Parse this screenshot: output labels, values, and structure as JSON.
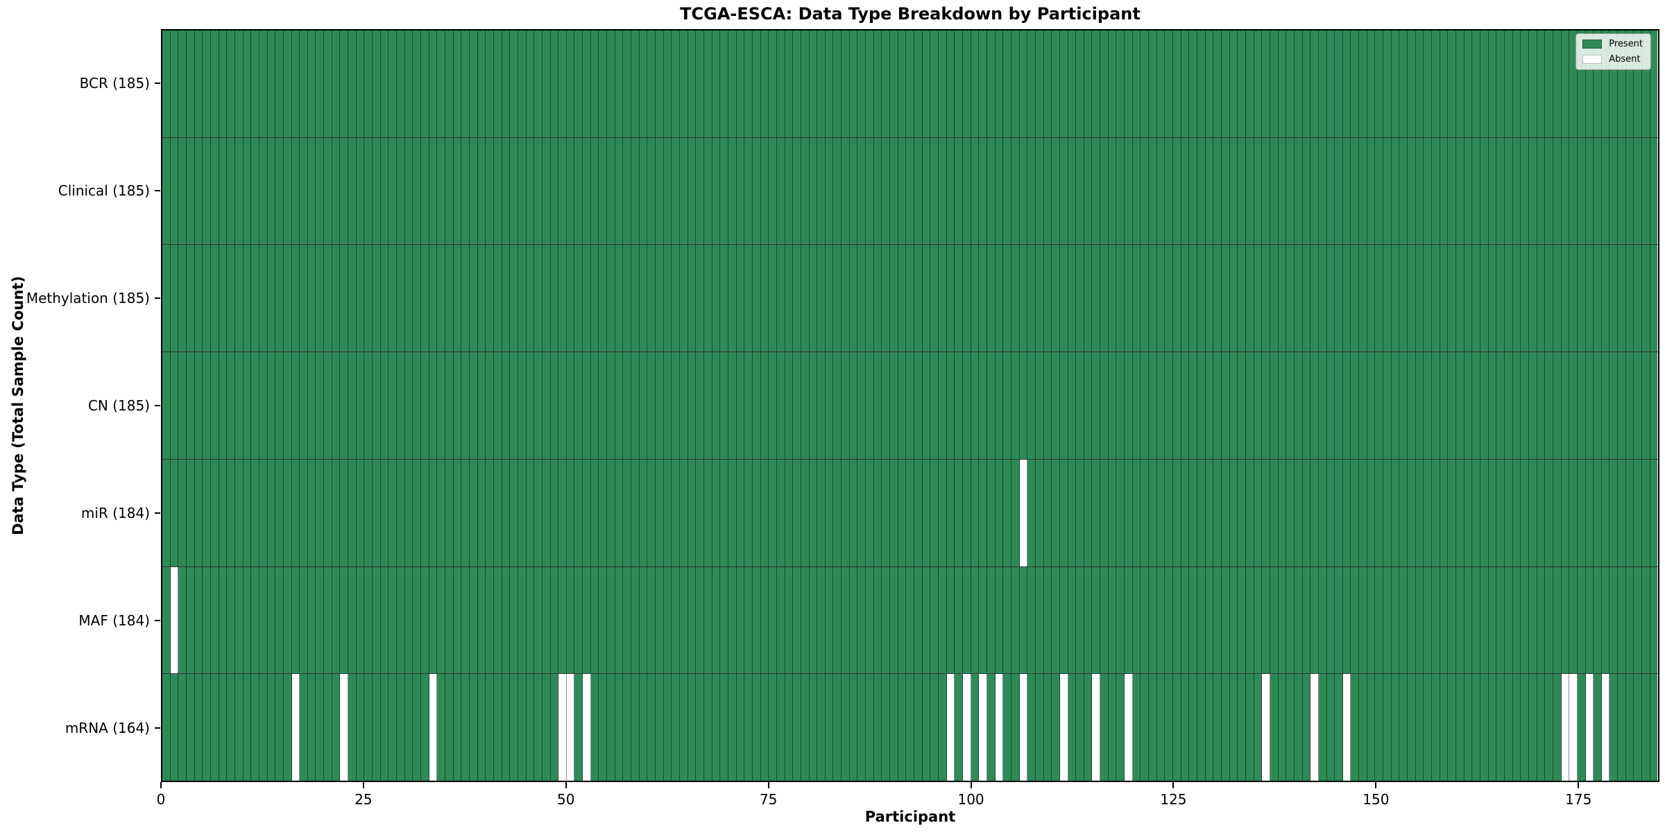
{
  "chart_data": {
    "type": "heatmap",
    "title": "TCGA-ESCA: Data Type Breakdown by Participant",
    "xlabel": "Participant",
    "ylabel": "Data Type (Total Sample Count)",
    "n_participants": 185,
    "x_axis_range": [
      0,
      185
    ],
    "x_ticks": [
      0,
      25,
      50,
      75,
      100,
      125,
      150,
      175
    ],
    "grid": true,
    "colors": {
      "present": "#2e8b57",
      "absent": "#ffffff",
      "cell_edge": "rgba(0,0,0,0.45)",
      "row_divider": "rgba(0,0,0,0.8)"
    },
    "legend": {
      "position": "upper right",
      "entries": [
        {
          "label": "Present",
          "color": "#2e8b57"
        },
        {
          "label": "Absent",
          "color": "#ffffff"
        }
      ]
    },
    "rows": [
      {
        "label": "BCR (185)",
        "data_type": "BCR",
        "present_count": 185,
        "absent_participants": []
      },
      {
        "label": "Clinical (185)",
        "data_type": "Clinical",
        "present_count": 185,
        "absent_participants": []
      },
      {
        "label": "Methylation (185)",
        "data_type": "Methylation",
        "present_count": 185,
        "absent_participants": []
      },
      {
        "label": "CN (185)",
        "data_type": "CN",
        "present_count": 185,
        "absent_participants": []
      },
      {
        "label": "miR (184)",
        "data_type": "miR",
        "present_count": 184,
        "absent_participants": [
          106
        ]
      },
      {
        "label": "MAF (184)",
        "data_type": "MAF",
        "present_count": 184,
        "absent_participants": [
          1
        ]
      },
      {
        "label": "mRNA (164)",
        "data_type": "mRNA",
        "present_count": 164,
        "absent_participants": [
          16,
          22,
          33,
          49,
          50,
          52,
          97,
          99,
          101,
          103,
          106,
          111,
          115,
          119,
          136,
          142,
          146,
          173,
          174,
          176,
          178
        ]
      }
    ]
  }
}
